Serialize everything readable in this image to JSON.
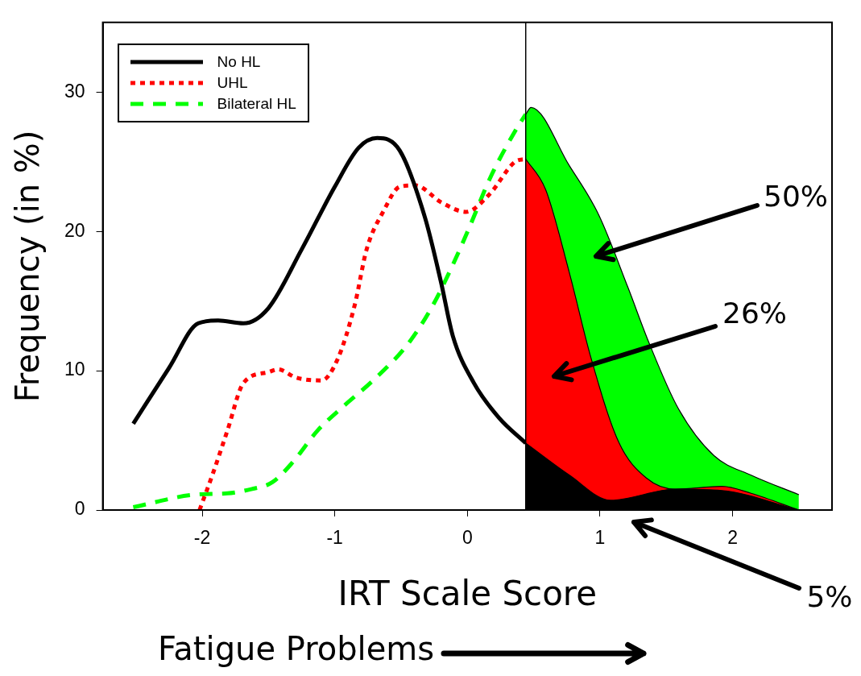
{
  "chart_data": {
    "type": "line",
    "xlabel": "IRT Scale Score",
    "ylabel": "Frequency (in %)",
    "xlim": [
      -2.75,
      2.75
    ],
    "ylim": [
      0,
      35
    ],
    "xticks": [
      -2,
      -1,
      0,
      1,
      2
    ],
    "yticks": [
      0,
      10,
      20,
      30
    ],
    "grid": false,
    "legend": "top left",
    "series": [
      {
        "name": "No HL",
        "color": "#000000",
        "line_style": "solid",
        "x": [
          -2.52,
          -2.25,
          -2.03,
          -1.88,
          -1.69,
          -1.5,
          -1.25,
          -1.0,
          -0.82,
          -0.68,
          -0.51,
          -0.32,
          -0.2,
          -0.11,
          0.05,
          0.24,
          0.44
        ],
        "values": [
          6.2,
          10.2,
          13.4,
          13.6,
          13.4,
          14.5,
          18.7,
          23.2,
          26.0,
          26.7,
          25.8,
          21.0,
          16.4,
          12.5,
          9.1,
          6.6,
          4.8
        ]
      },
      {
        "name": "UHL",
        "color": "#ff0000",
        "line_style": "dotted",
        "x": [
          -2.02,
          -1.92,
          -1.81,
          -1.69,
          -1.5,
          -1.43,
          -1.29,
          -1.1,
          -0.98,
          -0.85,
          -0.76,
          -0.63,
          -0.51,
          -0.39,
          -0.2,
          -0.01,
          0.17,
          0.36,
          0.44
        ],
        "values": [
          0,
          2.6,
          5.7,
          9.1,
          9.9,
          10.1,
          9.5,
          9.3,
          10.8,
          14.7,
          18.7,
          21.5,
          23.2,
          23.3,
          22.1,
          21.4,
          22.7,
          25.0,
          25.2
        ]
      },
      {
        "name": "Bilateral HL",
        "color": "#00ff00",
        "line_style": "dashed",
        "x": [
          -2.52,
          -2.06,
          -1.81,
          -1.63,
          -1.47,
          -1.32,
          -1.13,
          -0.94,
          -0.7,
          -0.45,
          -0.26,
          -0.11,
          0.02,
          0.17,
          0.36,
          0.44
        ],
        "values": [
          0.2,
          1.1,
          1.2,
          1.5,
          2.0,
          3.4,
          5.7,
          7.4,
          9.4,
          11.9,
          14.7,
          17.6,
          20.4,
          23.8,
          27.2,
          28.4
        ]
      },
      {
        "type": "area",
        "color": "#00ff00",
        "x": [
          0.44,
          0.48,
          0.77,
          0.99,
          1.21,
          1.37,
          1.59,
          1.86,
          2.14,
          2.5
        ],
        "values": [
          28.4,
          28.9,
          24.7,
          21.2,
          16.0,
          12.0,
          7.3,
          3.9,
          2.5,
          1.1
        ]
      },
      {
        "type": "area",
        "color": "#ff0000",
        "x": [
          0.44,
          0.59,
          0.77,
          0.93,
          1.14,
          1.35,
          1.57,
          1.92,
          2.14,
          2.5
        ],
        "values": [
          25.2,
          23.0,
          17.0,
          11.0,
          4.9,
          2.3,
          1.5,
          1.7,
          1.2,
          0
        ]
      },
      {
        "type": "area",
        "color": "#000000",
        "x": [
          0.44,
          0.77,
          1.08,
          1.57,
          1.92,
          2.5
        ],
        "values": [
          4.8,
          2.5,
          0.7,
          1.5,
          1.4,
          0
        ]
      }
    ],
    "ref_lines": [
      {
        "axis": "x",
        "value": 0.44,
        "color": "#000000"
      }
    ],
    "annotations": [
      "50%",
      "26%",
      "5%",
      "Fatigue Problems"
    ]
  }
}
